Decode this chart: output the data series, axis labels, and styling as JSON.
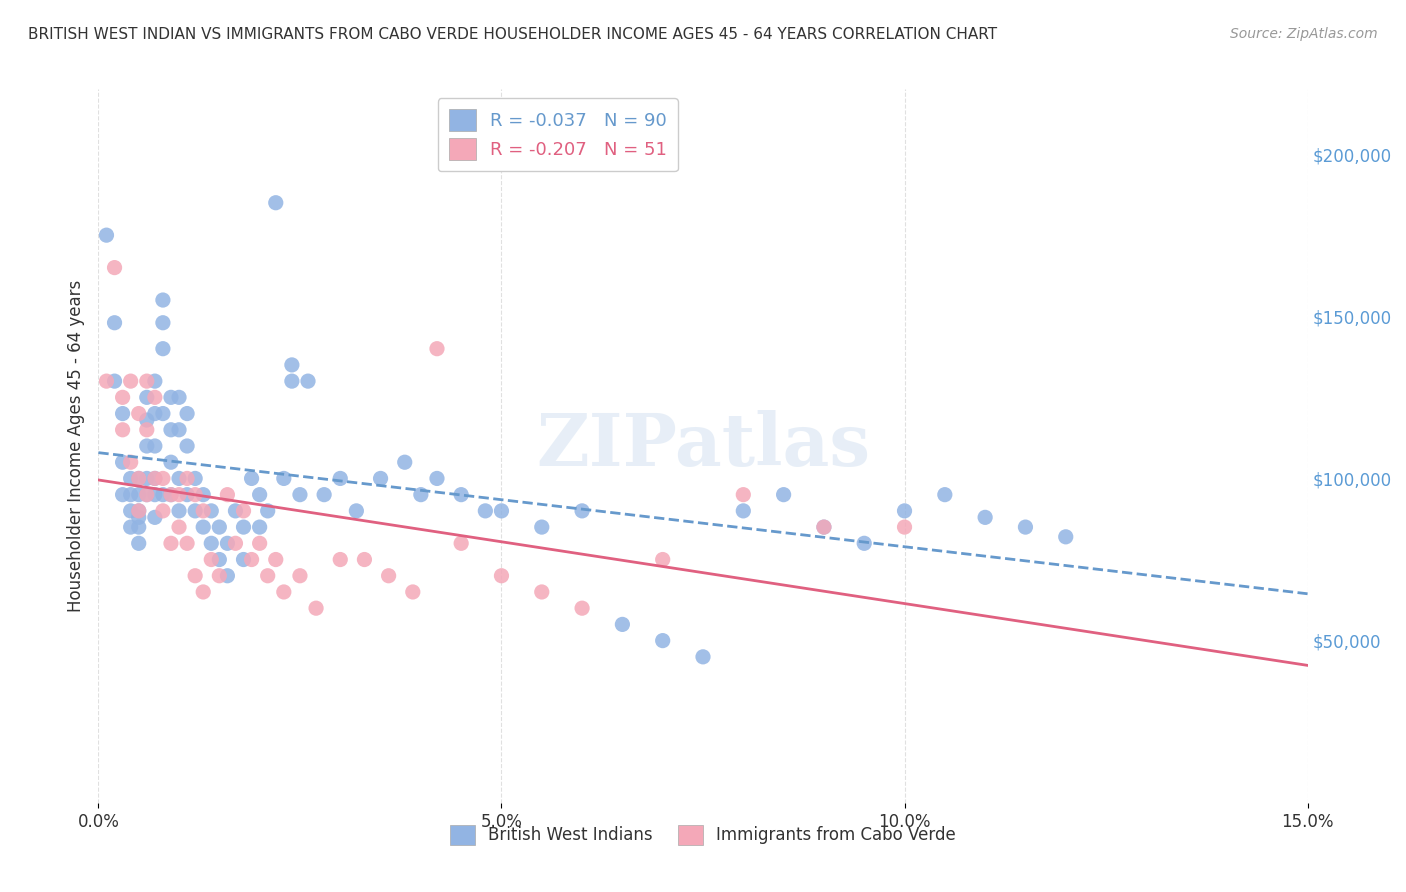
{
  "title": "BRITISH WEST INDIAN VS IMMIGRANTS FROM CABO VERDE HOUSEHOLDER INCOME AGES 45 - 64 YEARS CORRELATION CHART",
  "source": "Source: ZipAtlas.com",
  "xlabel": "",
  "ylabel": "Householder Income Ages 45 - 64 years",
  "xlim": [
    0.0,
    0.15
  ],
  "ylim": [
    0,
    220000
  ],
  "xtick_labels": [
    "0.0%",
    "5.0%",
    "10.0%",
    "15.0%"
  ],
  "xtick_positions": [
    0.0,
    0.05,
    0.1,
    0.15
  ],
  "ytick_labels": [
    "$50,000",
    "$100,000",
    "$150,000",
    "$200,000"
  ],
  "ytick_positions": [
    50000,
    100000,
    150000,
    200000
  ],
  "blue_color": "#92b4e3",
  "pink_color": "#f4a8b8",
  "blue_line_color": "#6699cc",
  "pink_line_color": "#e06080",
  "legend_blue_R": "R = -0.037",
  "legend_blue_N": "N = 90",
  "legend_pink_R": "R = -0.207",
  "legend_pink_N": "N = 51",
  "watermark": "ZIPatlas",
  "background_color": "#ffffff",
  "grid_color": "#e0e0e0",
  "blue_scatter_x": [
    0.001,
    0.002,
    0.002,
    0.003,
    0.003,
    0.003,
    0.004,
    0.004,
    0.004,
    0.004,
    0.005,
    0.005,
    0.005,
    0.005,
    0.005,
    0.005,
    0.006,
    0.006,
    0.006,
    0.006,
    0.006,
    0.007,
    0.007,
    0.007,
    0.007,
    0.007,
    0.007,
    0.008,
    0.008,
    0.008,
    0.008,
    0.008,
    0.009,
    0.009,
    0.009,
    0.009,
    0.01,
    0.01,
    0.01,
    0.01,
    0.011,
    0.011,
    0.011,
    0.012,
    0.012,
    0.013,
    0.013,
    0.014,
    0.014,
    0.015,
    0.015,
    0.016,
    0.016,
    0.017,
    0.018,
    0.018,
    0.019,
    0.02,
    0.02,
    0.021,
    0.022,
    0.023,
    0.024,
    0.024,
    0.025,
    0.026,
    0.028,
    0.03,
    0.032,
    0.035,
    0.038,
    0.04,
    0.042,
    0.045,
    0.048,
    0.05,
    0.055,
    0.06,
    0.065,
    0.07,
    0.075,
    0.08,
    0.085,
    0.09,
    0.095,
    0.1,
    0.105,
    0.11,
    0.115,
    0.12
  ],
  "blue_scatter_y": [
    175000,
    148000,
    130000,
    120000,
    105000,
    95000,
    100000,
    95000,
    90000,
    85000,
    100000,
    95000,
    90000,
    88000,
    85000,
    80000,
    125000,
    118000,
    110000,
    100000,
    95000,
    130000,
    120000,
    110000,
    100000,
    95000,
    88000,
    155000,
    148000,
    140000,
    120000,
    95000,
    125000,
    115000,
    105000,
    95000,
    125000,
    115000,
    100000,
    90000,
    120000,
    110000,
    95000,
    100000,
    90000,
    95000,
    85000,
    90000,
    80000,
    85000,
    75000,
    80000,
    70000,
    90000,
    85000,
    75000,
    100000,
    95000,
    85000,
    90000,
    185000,
    100000,
    135000,
    130000,
    95000,
    130000,
    95000,
    100000,
    90000,
    100000,
    105000,
    95000,
    100000,
    95000,
    90000,
    90000,
    85000,
    90000,
    55000,
    50000,
    45000,
    90000,
    95000,
    85000,
    80000,
    90000,
    95000,
    88000,
    85000,
    82000
  ],
  "pink_scatter_x": [
    0.001,
    0.002,
    0.003,
    0.003,
    0.004,
    0.004,
    0.005,
    0.005,
    0.005,
    0.006,
    0.006,
    0.006,
    0.007,
    0.007,
    0.008,
    0.008,
    0.009,
    0.009,
    0.01,
    0.01,
    0.011,
    0.011,
    0.012,
    0.012,
    0.013,
    0.013,
    0.014,
    0.015,
    0.016,
    0.017,
    0.018,
    0.019,
    0.02,
    0.021,
    0.022,
    0.023,
    0.025,
    0.027,
    0.03,
    0.033,
    0.036,
    0.039,
    0.042,
    0.045,
    0.05,
    0.055,
    0.06,
    0.07,
    0.08,
    0.09,
    0.1
  ],
  "pink_scatter_y": [
    130000,
    165000,
    125000,
    115000,
    130000,
    105000,
    120000,
    100000,
    90000,
    130000,
    115000,
    95000,
    125000,
    100000,
    100000,
    90000,
    95000,
    80000,
    95000,
    85000,
    100000,
    80000,
    95000,
    70000,
    90000,
    65000,
    75000,
    70000,
    95000,
    80000,
    90000,
    75000,
    80000,
    70000,
    75000,
    65000,
    70000,
    60000,
    75000,
    75000,
    70000,
    65000,
    140000,
    80000,
    70000,
    65000,
    60000,
    75000,
    95000,
    85000,
    85000
  ]
}
